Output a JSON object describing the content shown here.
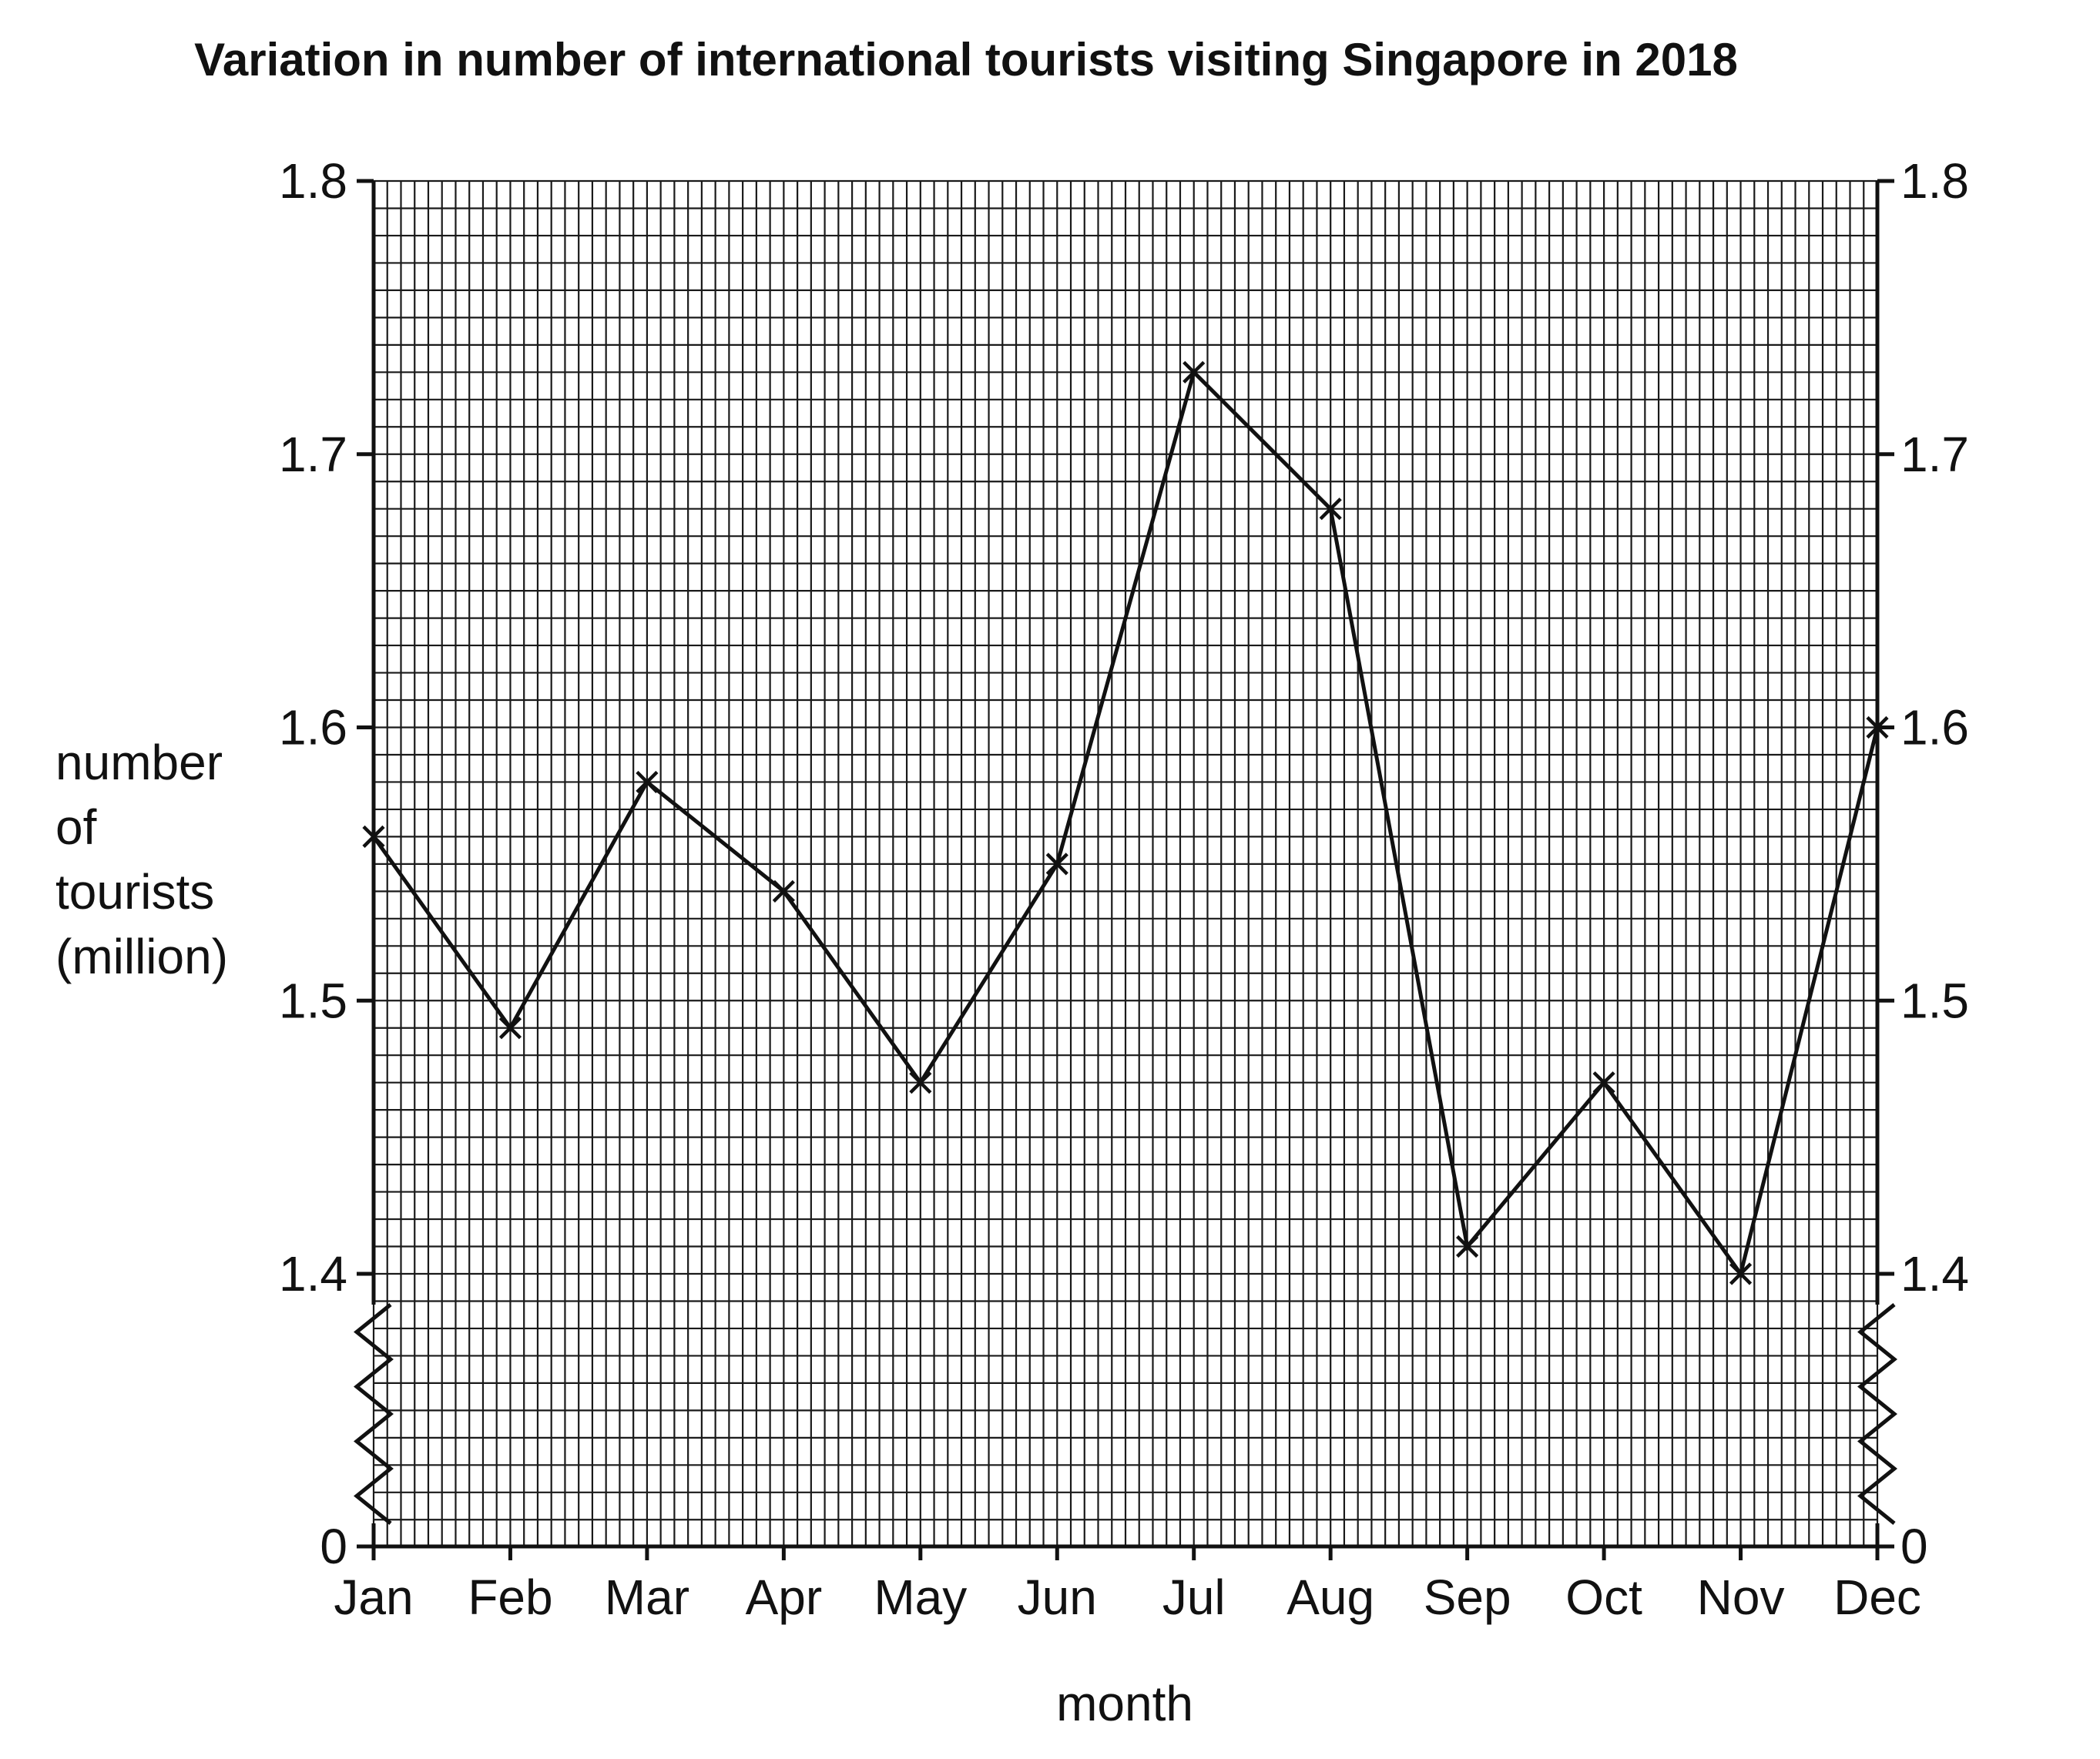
{
  "chart_data": {
    "type": "line",
    "title": "Variation in number of international tourists visiting Singapore in 2018",
    "xlabel": "month",
    "ylabel": [
      "number",
      "of",
      "tourists",
      "(million)"
    ],
    "categories": [
      "Jan",
      "Feb",
      "Mar",
      "Apr",
      "May",
      "Jun",
      "Jul",
      "Aug",
      "Sep",
      "Oct",
      "Nov",
      "Dec"
    ],
    "series": [
      {
        "values": [
          1.56,
          1.49,
          1.58,
          1.54,
          1.47,
          1.55,
          1.73,
          1.68,
          1.41,
          1.47,
          1.4,
          1.6
        ]
      }
    ],
    "ylim": [
      1.4,
      1.8
    ],
    "axis_break": {
      "below": 1.4,
      "baseline_label": "0"
    },
    "yticks": [
      "0",
      "1.4",
      "1.5",
      "1.6",
      "1.7",
      "1.8"
    ],
    "ytick_values": [
      1.4,
      1.5,
      1.6,
      1.7,
      1.8
    ],
    "right_axis_mirrored": true,
    "grid": true,
    "marker": "cross"
  }
}
